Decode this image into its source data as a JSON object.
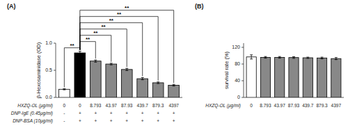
{
  "chart_data": [
    {
      "type": "bar",
      "title": "(A)",
      "ylabel": "β-Hexosaminidase (OD)",
      "xlabel": "HXZQ-OL (μg/ml)",
      "categories": [
        "0",
        "0",
        "8.793",
        "43.97",
        "87.93",
        "439.7",
        "879.3",
        "4397"
      ],
      "values": [
        0.15,
        0.82,
        0.67,
        0.615,
        0.515,
        0.345,
        0.27,
        0.225
      ],
      "errors": [
        0.01,
        0.03,
        0.02,
        0.015,
        0.02,
        0.02,
        0.015,
        0.015
      ],
      "colors": [
        "white",
        "black",
        "#888888",
        "#888888",
        "#888888",
        "#888888",
        "#888888",
        "#888888"
      ],
      "condition_rows": [
        {
          "label": "DNP-IgE (0.45μg/ml)",
          "values": [
            "-",
            "+",
            "+",
            "+",
            "+",
            "+",
            "+",
            "+"
          ]
        },
        {
          "label": "DNP-BSA (10μg/ml)",
          "values": [
            "-",
            "+",
            "+",
            "+",
            "+",
            "+",
            "+",
            "+"
          ]
        }
      ],
      "significance": [
        {
          "from": 0,
          "to": 1,
          "label": "**"
        },
        {
          "from": 1,
          "to": 2,
          "label": "**"
        },
        {
          "from": 1,
          "to": 3,
          "label": "**"
        },
        {
          "from": 1,
          "to": 4,
          "label": "**"
        },
        {
          "from": 1,
          "to": 5,
          "label": "**"
        },
        {
          "from": 1,
          "to": 6,
          "label": "**"
        },
        {
          "from": 1,
          "to": 7,
          "label": "**"
        }
      ],
      "ylim": [
        0,
        1.0
      ],
      "yticks": [
        {
          "value": 0,
          "label": "0.0"
        },
        0.5,
        {
          "value": 1.0,
          "label": "1.0"
        }
      ],
      "grid": false
    },
    {
      "type": "bar",
      "title": "(B)",
      "ylabel": "survival rate (%)",
      "xlabel": "HXZQ-OL (μg/ml)",
      "categories": [
        "0",
        "8.793",
        "43.97",
        "87.93",
        "439.7",
        "879.3",
        "4397"
      ],
      "values": [
        97,
        96,
        96,
        95.5,
        95,
        94.5,
        93
      ],
      "errors": [
        5,
        2,
        2,
        2,
        1.5,
        2,
        2.5
      ],
      "colors": [
        "white",
        "#888888",
        "#888888",
        "#888888",
        "#888888",
        "#888888",
        "#888888"
      ],
      "ylim": [
        0,
        130
      ],
      "yticks": [
        0,
        40,
        80,
        120
      ],
      "grid": false
    }
  ]
}
